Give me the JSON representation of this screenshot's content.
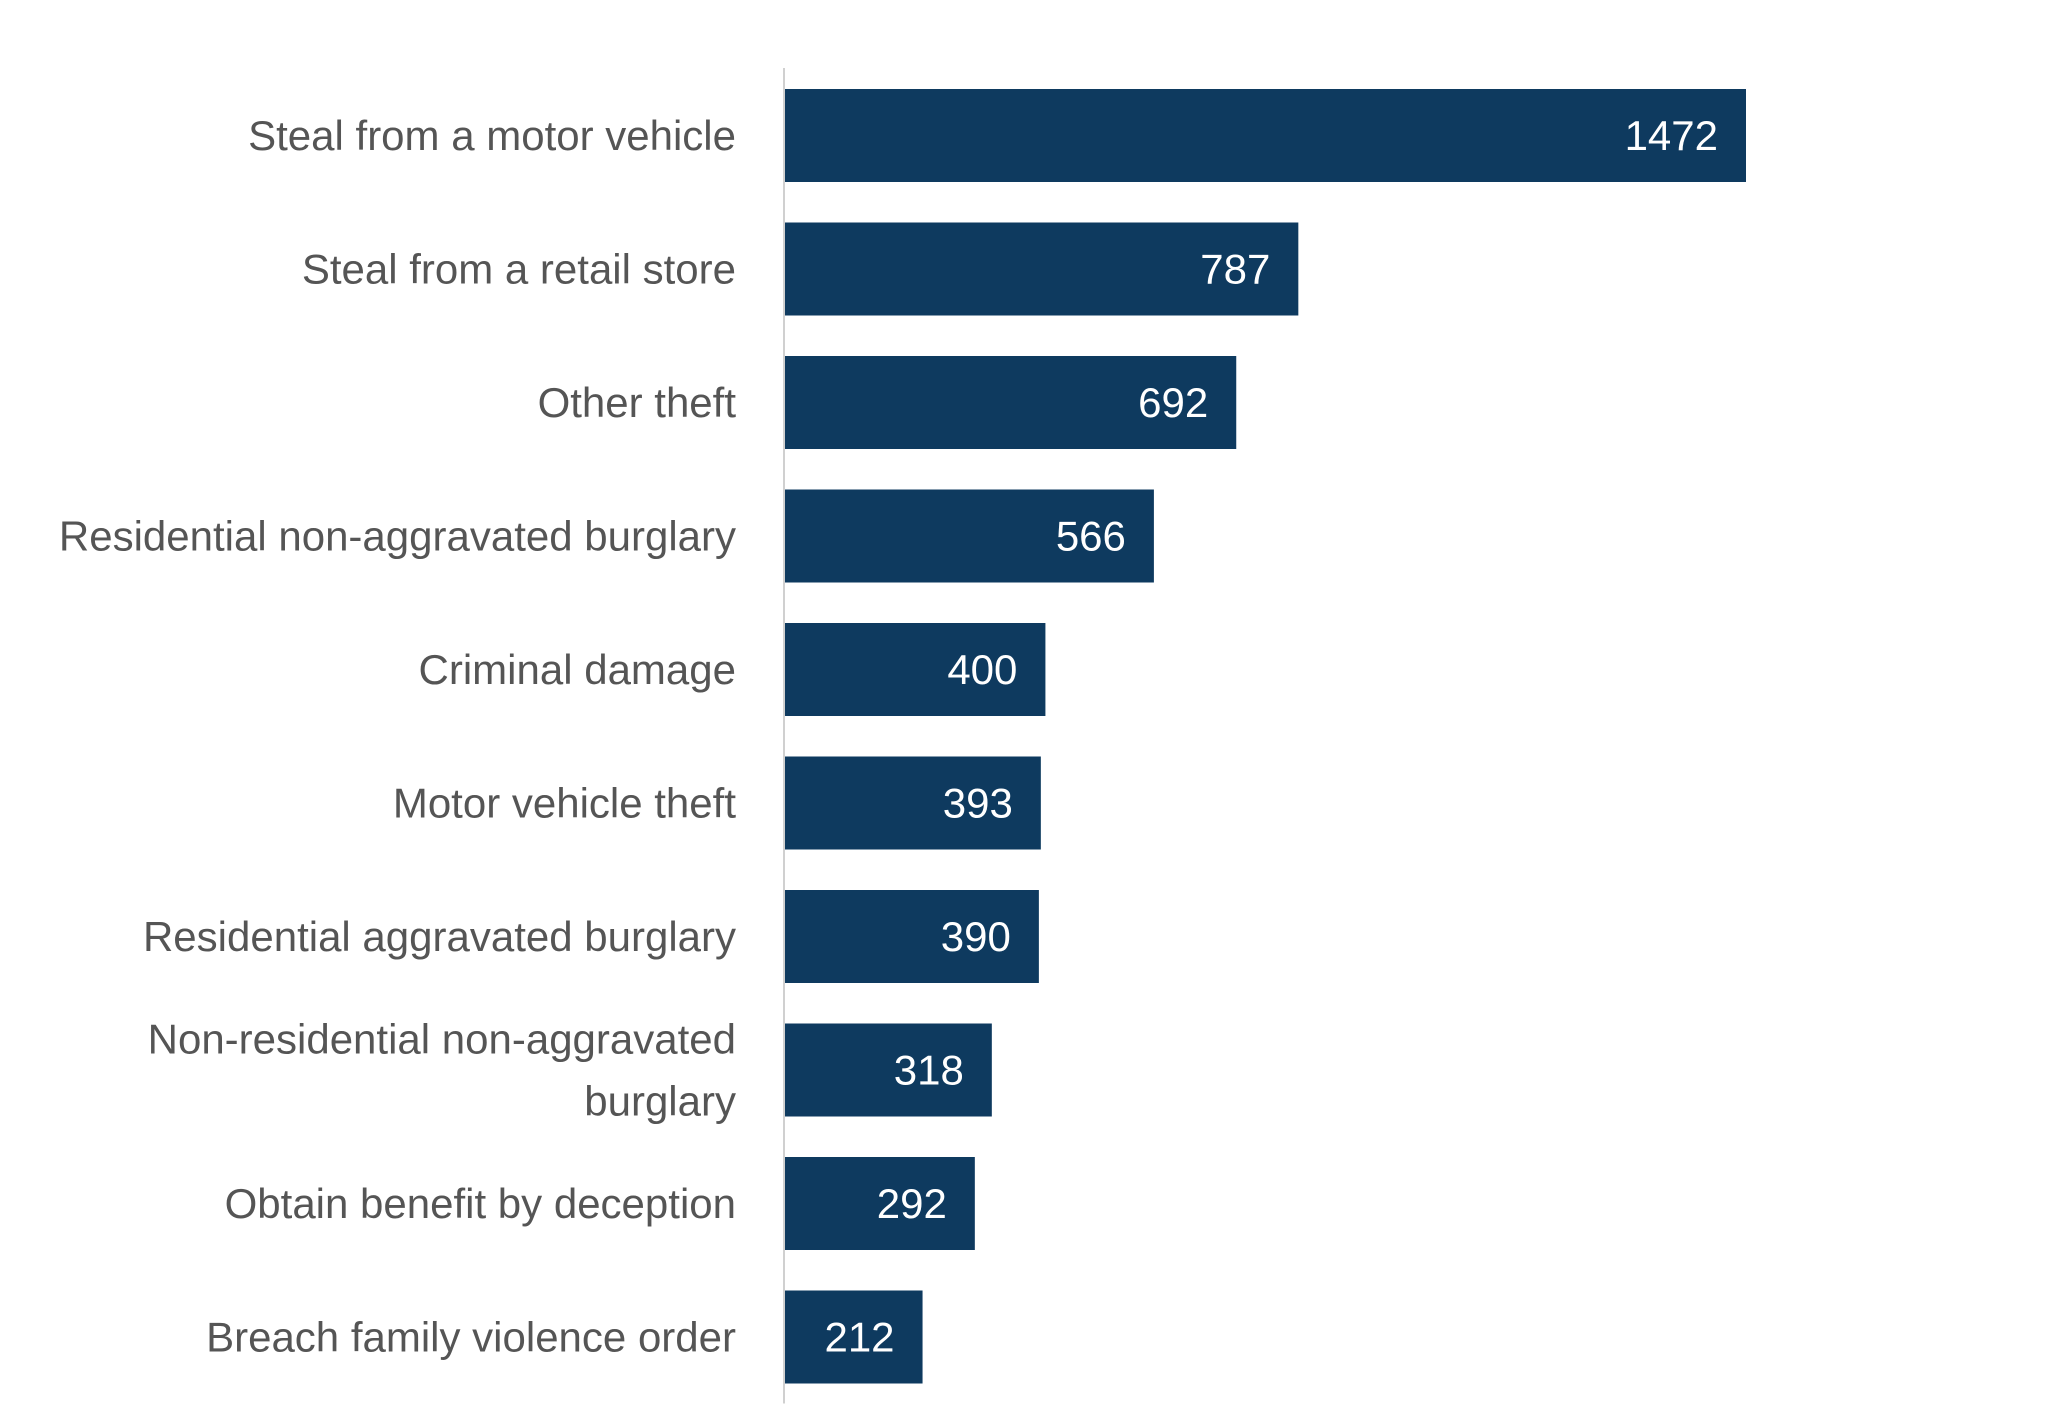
{
  "chart_data": {
    "type": "bar",
    "orientation": "horizontal",
    "categories": [
      "Steal from a motor vehicle",
      "Steal from a retail store",
      "Other theft",
      "Residential non-aggravated burglary",
      "Criminal damage",
      "Motor vehicle theft",
      "Residential aggravated burglary",
      "Non-residential non-aggravated burglary",
      "Obtain benefit by deception",
      "Breach family violence order"
    ],
    "values": [
      1472,
      787,
      692,
      566,
      400,
      393,
      390,
      318,
      292,
      212
    ],
    "data_labels": [
      "1472",
      "787",
      "692",
      "566",
      "400",
      "393",
      "390",
      "318",
      "292",
      "212"
    ],
    "bar_color": "#0e3a5f",
    "axis_color": "#d0d0d0",
    "label_color": "#555555",
    "value_label_color": "#ffffff",
    "xlim": [
      0,
      1472
    ],
    "grid": false,
    "legend": "none"
  }
}
